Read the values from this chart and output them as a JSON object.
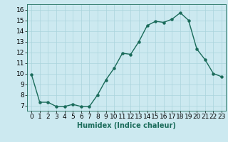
{
  "x": [
    0,
    1,
    2,
    3,
    4,
    5,
    6,
    7,
    8,
    9,
    10,
    11,
    12,
    13,
    14,
    15,
    16,
    17,
    18,
    19,
    20,
    21,
    22,
    23
  ],
  "y": [
    9.9,
    7.3,
    7.3,
    6.9,
    6.9,
    7.1,
    6.9,
    6.9,
    8.0,
    9.4,
    10.5,
    11.9,
    11.8,
    13.0,
    14.5,
    14.9,
    14.8,
    15.1,
    15.7,
    15.0,
    12.3,
    11.3,
    10.0,
    9.7
  ],
  "line_color": "#1a6b5a",
  "marker": "o",
  "marker_size": 2.2,
  "bg_color": "#cce9f0",
  "grid_color": "#aad4dc",
  "xlabel": "Humidex (Indice chaleur)",
  "xlim": [
    -0.5,
    23.5
  ],
  "ylim": [
    6.5,
    16.5
  ],
  "yticks": [
    7,
    8,
    9,
    10,
    11,
    12,
    13,
    14,
    15,
    16
  ],
  "xticks": [
    0,
    1,
    2,
    3,
    4,
    5,
    6,
    7,
    8,
    9,
    10,
    11,
    12,
    13,
    14,
    15,
    16,
    17,
    18,
    19,
    20,
    21,
    22,
    23
  ],
  "xlabel_fontsize": 7,
  "tick_fontsize": 6.5,
  "line_width": 1.0
}
